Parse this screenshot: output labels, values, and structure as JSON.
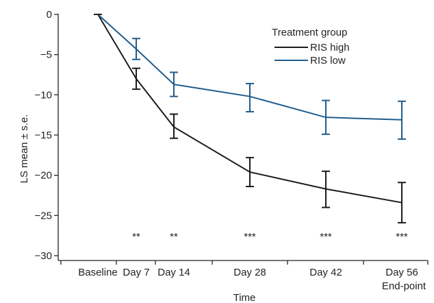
{
  "chart_data": {
    "type": "line",
    "xlabel": "Time",
    "ylabel": "LS mean ± s.e.",
    "ylim": [
      -30,
      0
    ],
    "yticks": [
      0,
      -5,
      -10,
      -15,
      -20,
      -25,
      -30
    ],
    "yticklabels": [
      "0",
      "−5",
      "−10",
      "−15",
      "−20",
      "−25",
      "−30"
    ],
    "categories": [
      "Baseline",
      "Day 7",
      "Day 14",
      "Day 28",
      "Day 42",
      "Day 56"
    ],
    "category_sublabels": [
      "",
      "",
      "",
      "",
      "",
      "End-point"
    ],
    "x": [
      0,
      7,
      14,
      28,
      42,
      56
    ],
    "legend": {
      "title": "Treatment group",
      "placement": "top-right"
    },
    "series": [
      {
        "name": "RIS high",
        "color": "#1a1a1a",
        "values": [
          0,
          -8.0,
          -14.0,
          -19.6,
          -21.7,
          -23.4
        ],
        "err_upper": [
          0,
          1.3,
          1.6,
          1.8,
          2.2,
          2.5
        ],
        "err_lower": [
          0,
          1.3,
          1.4,
          1.8,
          2.3,
          2.5
        ]
      },
      {
        "name": "RIS low",
        "color": "#1f5b8c",
        "values": [
          0,
          -4.3,
          -8.7,
          -10.2,
          -12.8,
          -13.1
        ],
        "err_upper": [
          0,
          1.3,
          1.5,
          1.6,
          2.1,
          2.3
        ],
        "err_lower": [
          0,
          1.3,
          1.5,
          1.9,
          2.1,
          2.4
        ]
      }
    ],
    "annotations": [
      {
        "x": 7,
        "text": "**"
      },
      {
        "x": 14,
        "text": "**"
      },
      {
        "x": 28,
        "text": "***"
      },
      {
        "x": 42,
        "text": "***"
      },
      {
        "x": 56,
        "text": "***"
      }
    ],
    "annotation_y": -27
  }
}
